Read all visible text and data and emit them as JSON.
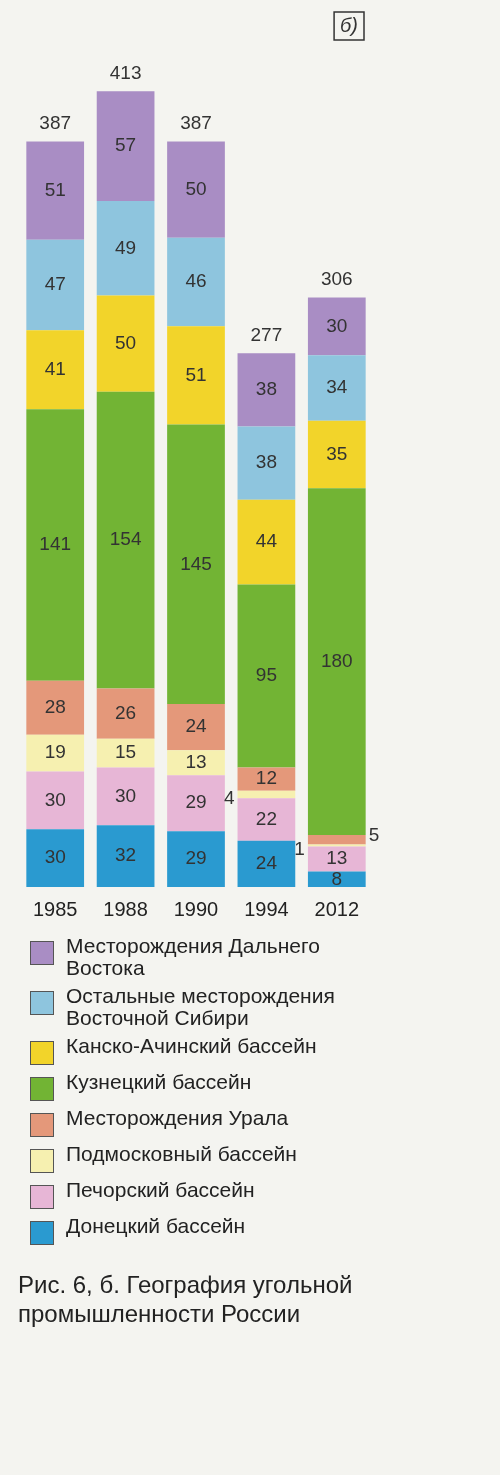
{
  "chart_data": {
    "type": "bar",
    "stacked": true,
    "data_labels": true,
    "legend": "bottom",
    "grid": false,
    "title": "Рис. 6, б. География угольной промышленности России",
    "annotations": [
      "б)"
    ],
    "categories": [
      "1985",
      "1988",
      "1990",
      "1994",
      "2012"
    ],
    "totals": [
      "387",
      "413",
      "387",
      "277",
      "306"
    ],
    "series": [
      {
        "name": "Донецкий бассейн",
        "color": "#2a9ad0",
        "values": [
          30,
          32,
          29,
          24,
          8
        ]
      },
      {
        "name": "Печорский бассейн",
        "color": "#e7b6d6",
        "values": [
          30,
          30,
          29,
          22,
          13
        ]
      },
      {
        "name": "Подмосковный бассейн",
        "color": "#f6f0b0",
        "values": [
          19,
          15,
          13,
          4,
          1
        ]
      },
      {
        "name": "Месторождения Урала",
        "color": "#e4987a",
        "values": [
          28,
          26,
          24,
          12,
          5
        ]
      },
      {
        "name": "Кузнецкий бассейн",
        "color": "#72b434",
        "values": [
          141,
          154,
          145,
          95,
          180
        ]
      },
      {
        "name": "Канско-Ачинский бассейн",
        "color": "#f2d42a",
        "values": [
          41,
          50,
          51,
          44,
          35
        ]
      },
      {
        "name": "Остальные месторождения Восточной Сибири",
        "color": "#8ec5de",
        "values": [
          47,
          49,
          46,
          38,
          34
        ]
      },
      {
        "name": "Месторождения Дальнего Востока",
        "color": "#a98dc4",
        "values": [
          51,
          57,
          50,
          38,
          30
        ]
      }
    ]
  }
}
